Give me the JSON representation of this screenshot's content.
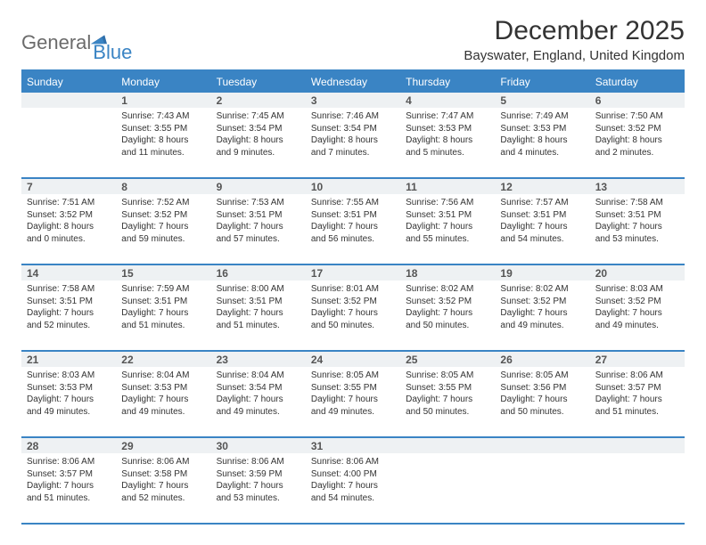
{
  "brand": {
    "part1": "General",
    "part2": "Blue"
  },
  "title": "December 2025",
  "location": "Bayswater, England, United Kingdom",
  "colors": {
    "accent": "#3a84c4",
    "daynum_bg": "#eef1f3",
    "text": "#333333",
    "logo_gray": "#6b6b6b"
  },
  "daysOfWeek": [
    "Sunday",
    "Monday",
    "Tuesday",
    "Wednesday",
    "Thursday",
    "Friday",
    "Saturday"
  ],
  "weeks": [
    [
      {
        "num": "",
        "lines": [
          "",
          "",
          "",
          ""
        ]
      },
      {
        "num": "1",
        "lines": [
          "Sunrise: 7:43 AM",
          "Sunset: 3:55 PM",
          "Daylight: 8 hours",
          "and 11 minutes."
        ]
      },
      {
        "num": "2",
        "lines": [
          "Sunrise: 7:45 AM",
          "Sunset: 3:54 PM",
          "Daylight: 8 hours",
          "and 9 minutes."
        ]
      },
      {
        "num": "3",
        "lines": [
          "Sunrise: 7:46 AM",
          "Sunset: 3:54 PM",
          "Daylight: 8 hours",
          "and 7 minutes."
        ]
      },
      {
        "num": "4",
        "lines": [
          "Sunrise: 7:47 AM",
          "Sunset: 3:53 PM",
          "Daylight: 8 hours",
          "and 5 minutes."
        ]
      },
      {
        "num": "5",
        "lines": [
          "Sunrise: 7:49 AM",
          "Sunset: 3:53 PM",
          "Daylight: 8 hours",
          "and 4 minutes."
        ]
      },
      {
        "num": "6",
        "lines": [
          "Sunrise: 7:50 AM",
          "Sunset: 3:52 PM",
          "Daylight: 8 hours",
          "and 2 minutes."
        ]
      }
    ],
    [
      {
        "num": "7",
        "lines": [
          "Sunrise: 7:51 AM",
          "Sunset: 3:52 PM",
          "Daylight: 8 hours",
          "and 0 minutes."
        ]
      },
      {
        "num": "8",
        "lines": [
          "Sunrise: 7:52 AM",
          "Sunset: 3:52 PM",
          "Daylight: 7 hours",
          "and 59 minutes."
        ]
      },
      {
        "num": "9",
        "lines": [
          "Sunrise: 7:53 AM",
          "Sunset: 3:51 PM",
          "Daylight: 7 hours",
          "and 57 minutes."
        ]
      },
      {
        "num": "10",
        "lines": [
          "Sunrise: 7:55 AM",
          "Sunset: 3:51 PM",
          "Daylight: 7 hours",
          "and 56 minutes."
        ]
      },
      {
        "num": "11",
        "lines": [
          "Sunrise: 7:56 AM",
          "Sunset: 3:51 PM",
          "Daylight: 7 hours",
          "and 55 minutes."
        ]
      },
      {
        "num": "12",
        "lines": [
          "Sunrise: 7:57 AM",
          "Sunset: 3:51 PM",
          "Daylight: 7 hours",
          "and 54 minutes."
        ]
      },
      {
        "num": "13",
        "lines": [
          "Sunrise: 7:58 AM",
          "Sunset: 3:51 PM",
          "Daylight: 7 hours",
          "and 53 minutes."
        ]
      }
    ],
    [
      {
        "num": "14",
        "lines": [
          "Sunrise: 7:58 AM",
          "Sunset: 3:51 PM",
          "Daylight: 7 hours",
          "and 52 minutes."
        ]
      },
      {
        "num": "15",
        "lines": [
          "Sunrise: 7:59 AM",
          "Sunset: 3:51 PM",
          "Daylight: 7 hours",
          "and 51 minutes."
        ]
      },
      {
        "num": "16",
        "lines": [
          "Sunrise: 8:00 AM",
          "Sunset: 3:51 PM",
          "Daylight: 7 hours",
          "and 51 minutes."
        ]
      },
      {
        "num": "17",
        "lines": [
          "Sunrise: 8:01 AM",
          "Sunset: 3:52 PM",
          "Daylight: 7 hours",
          "and 50 minutes."
        ]
      },
      {
        "num": "18",
        "lines": [
          "Sunrise: 8:02 AM",
          "Sunset: 3:52 PM",
          "Daylight: 7 hours",
          "and 50 minutes."
        ]
      },
      {
        "num": "19",
        "lines": [
          "Sunrise: 8:02 AM",
          "Sunset: 3:52 PM",
          "Daylight: 7 hours",
          "and 49 minutes."
        ]
      },
      {
        "num": "20",
        "lines": [
          "Sunrise: 8:03 AM",
          "Sunset: 3:52 PM",
          "Daylight: 7 hours",
          "and 49 minutes."
        ]
      }
    ],
    [
      {
        "num": "21",
        "lines": [
          "Sunrise: 8:03 AM",
          "Sunset: 3:53 PM",
          "Daylight: 7 hours",
          "and 49 minutes."
        ]
      },
      {
        "num": "22",
        "lines": [
          "Sunrise: 8:04 AM",
          "Sunset: 3:53 PM",
          "Daylight: 7 hours",
          "and 49 minutes."
        ]
      },
      {
        "num": "23",
        "lines": [
          "Sunrise: 8:04 AM",
          "Sunset: 3:54 PM",
          "Daylight: 7 hours",
          "and 49 minutes."
        ]
      },
      {
        "num": "24",
        "lines": [
          "Sunrise: 8:05 AM",
          "Sunset: 3:55 PM",
          "Daylight: 7 hours",
          "and 49 minutes."
        ]
      },
      {
        "num": "25",
        "lines": [
          "Sunrise: 8:05 AM",
          "Sunset: 3:55 PM",
          "Daylight: 7 hours",
          "and 50 minutes."
        ]
      },
      {
        "num": "26",
        "lines": [
          "Sunrise: 8:05 AM",
          "Sunset: 3:56 PM",
          "Daylight: 7 hours",
          "and 50 minutes."
        ]
      },
      {
        "num": "27",
        "lines": [
          "Sunrise: 8:06 AM",
          "Sunset: 3:57 PM",
          "Daylight: 7 hours",
          "and 51 minutes."
        ]
      }
    ],
    [
      {
        "num": "28",
        "lines": [
          "Sunrise: 8:06 AM",
          "Sunset: 3:57 PM",
          "Daylight: 7 hours",
          "and 51 minutes."
        ]
      },
      {
        "num": "29",
        "lines": [
          "Sunrise: 8:06 AM",
          "Sunset: 3:58 PM",
          "Daylight: 7 hours",
          "and 52 minutes."
        ]
      },
      {
        "num": "30",
        "lines": [
          "Sunrise: 8:06 AM",
          "Sunset: 3:59 PM",
          "Daylight: 7 hours",
          "and 53 minutes."
        ]
      },
      {
        "num": "31",
        "lines": [
          "Sunrise: 8:06 AM",
          "Sunset: 4:00 PM",
          "Daylight: 7 hours",
          "and 54 minutes."
        ]
      },
      {
        "num": "",
        "lines": [
          "",
          "",
          "",
          ""
        ]
      },
      {
        "num": "",
        "lines": [
          "",
          "",
          "",
          ""
        ]
      },
      {
        "num": "",
        "lines": [
          "",
          "",
          "",
          ""
        ]
      }
    ]
  ]
}
